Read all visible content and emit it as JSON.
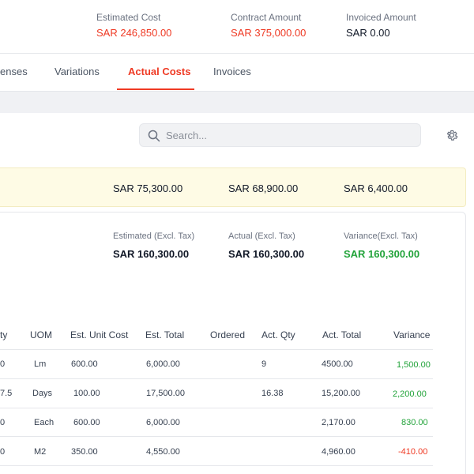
{
  "summary": {
    "estimated_cost_label": "Estimated Cost",
    "estimated_cost_value": "SAR 246,850.00",
    "contract_amount_label": "Contract Amount",
    "contract_amount_value": "SAR 375,000.00",
    "invoiced_amount_label": "Invoiced Amount",
    "invoiced_amount_value": "SAR 0.00"
  },
  "tabs": [
    {
      "label": "enses",
      "active": false
    },
    {
      "label": "Variations",
      "active": false
    },
    {
      "label": "Actual Costs",
      "active": true
    },
    {
      "label": "Invoices",
      "active": false
    }
  ],
  "search": {
    "placeholder": "Search...",
    "value": ""
  },
  "icons": {
    "search": "search-icon",
    "settings": "gear-icon"
  },
  "totals_band": {
    "estimated": "SAR 75,300.00",
    "actual": "SAR 68,900.00",
    "variance": "SAR 6,400.00"
  },
  "card": {
    "estimated_label": "Estimated (Excl. Tax)",
    "estimated_value": "SAR 160,300.00",
    "actual_label": "Actual (Excl. Tax)",
    "actual_value": "SAR 160,300.00",
    "variance_label": "Variance(Excl. Tax)",
    "variance_value": "SAR 160,300.00"
  },
  "table": {
    "headers": [
      "ty",
      "UOM",
      "Est. Unit Cost",
      "Est. Total",
      "Ordered",
      "Act. Qty",
      "Act. Total",
      "Variance"
    ],
    "rows": [
      [
        "0",
        "Lm",
        "600.00",
        "6,000.00",
        "",
        "9",
        "4500.00",
        "1,500.00"
      ],
      [
        "7.5",
        "Days",
        "100.00",
        "17,500.00",
        "",
        "16.38",
        "15,200.00",
        "2,200.00"
      ],
      [
        "0",
        "Each",
        "600.00",
        "6,000.00",
        "",
        "",
        "2,170.00",
        "830.00"
      ],
      [
        "0",
        "M2",
        "350.00",
        "4,550.00",
        "",
        "",
        "4,960.00",
        "-410.00"
      ]
    ]
  },
  "colors": {
    "accent": "#ef3a24",
    "positive": "#22a33a",
    "band": "#fefbe5"
  }
}
